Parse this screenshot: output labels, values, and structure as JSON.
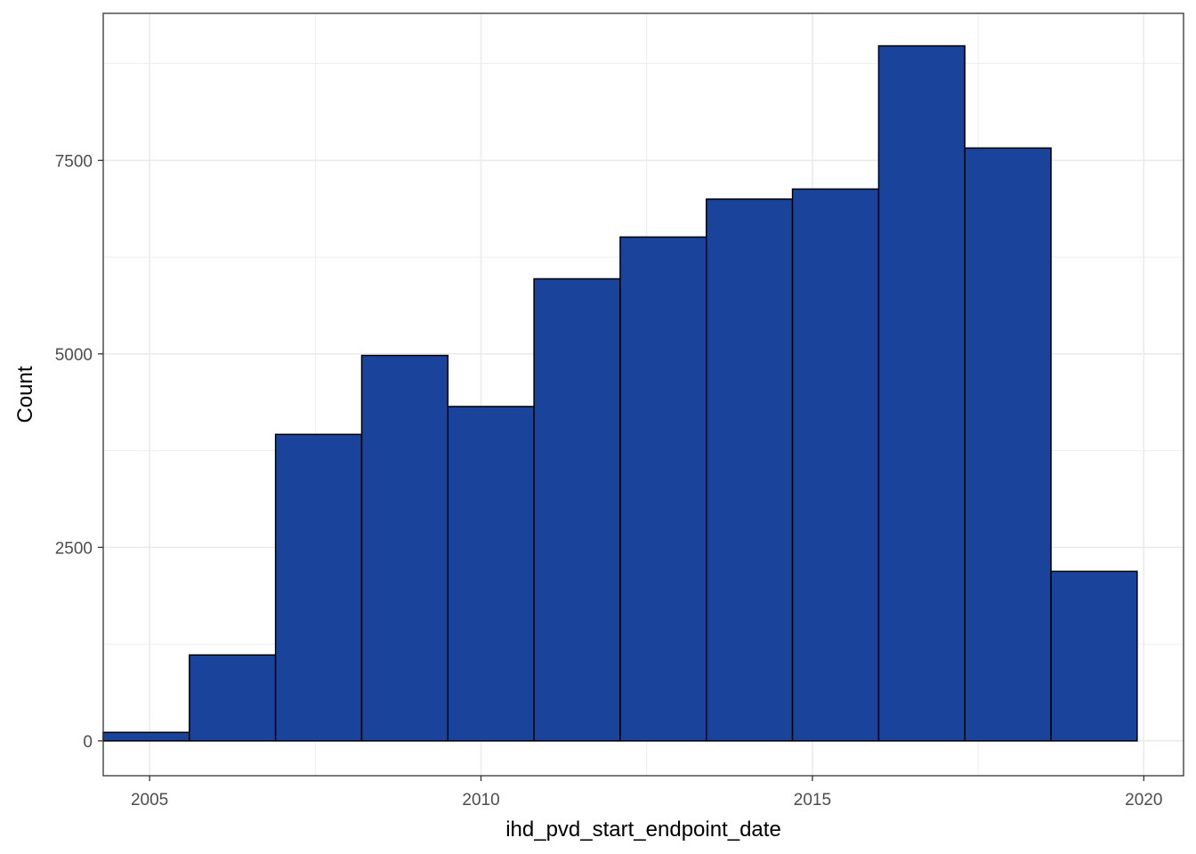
{
  "chart_data": {
    "type": "bar",
    "subtype": "histogram",
    "title": "",
    "xlabel": "ihd_pvd_start_endpoint_date",
    "ylabel": "Count",
    "x_ticks": [
      "2005",
      "2010",
      "2015",
      "2020"
    ],
    "y_ticks": [
      "0",
      "2500",
      "5000",
      "7500"
    ],
    "x_tick_values": [
      2005,
      2010,
      2015,
      2020
    ],
    "y_tick_values": [
      0,
      2500,
      5000,
      7500
    ],
    "xlim": [
      2004.3,
      2020.6
    ],
    "ylim": [
      -450,
      9400
    ],
    "bin_width": 1.3,
    "bins": [
      {
        "x_start": 2004.3,
        "x_end": 2005.6,
        "count": 110
      },
      {
        "x_start": 2005.6,
        "x_end": 2006.9,
        "count": 1110
      },
      {
        "x_start": 2006.9,
        "x_end": 2008.2,
        "count": 3960
      },
      {
        "x_start": 2008.2,
        "x_end": 2009.5,
        "count": 4980
      },
      {
        "x_start": 2009.5,
        "x_end": 2010.8,
        "count": 4320
      },
      {
        "x_start": 2010.8,
        "x_end": 2012.1,
        "count": 5970
      },
      {
        "x_start": 2012.1,
        "x_end": 2013.4,
        "count": 6510
      },
      {
        "x_start": 2013.4,
        "x_end": 2014.7,
        "count": 7000
      },
      {
        "x_start": 2014.7,
        "x_end": 2016.0,
        "count": 7130
      },
      {
        "x_start": 2016.0,
        "x_end": 2017.3,
        "count": 8980
      },
      {
        "x_start": 2017.3,
        "x_end": 2018.6,
        "count": 7660
      },
      {
        "x_start": 2018.6,
        "x_end": 2019.9,
        "count": 2190
      }
    ],
    "grid": true,
    "legend": "none",
    "colors": {
      "bar_fill": "#1a449b",
      "bar_outline": "#000000",
      "grid": "#ebebeb",
      "panel_border": "#333333",
      "tick_text": "#4d4d4d",
      "axis_title": "#000000"
    }
  }
}
